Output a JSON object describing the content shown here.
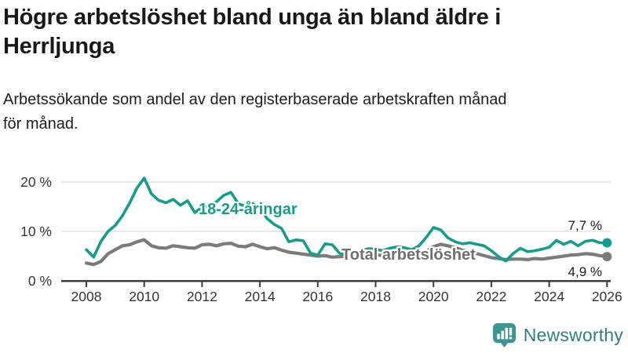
{
  "header": {
    "title": "Högre arbetslöshet bland unga än bland äldre i\nHerrljunga",
    "subtitle": "Arbetssökande som andel av den registerbaserade arbetskraften månad\nför månad."
  },
  "chart_data": {
    "type": "line",
    "title": "Högre arbetslöshet bland unga än bland äldre i Herrljunga",
    "xlabel": "",
    "ylabel": "Arbetssökande som andel av den registerbaserade arbetskraften (%)",
    "x_start": 2008,
    "x_step": 0.25,
    "x_ticks": [
      2008,
      2010,
      2012,
      2014,
      2016,
      2018,
      2020,
      2022,
      2024,
      2026
    ],
    "y_ticks": [
      0,
      10,
      20
    ],
    "y_tick_suffix": " %",
    "ylim": [
      0,
      22
    ],
    "xlim": [
      2007.2,
      2026.2
    ],
    "grid": "horizontal",
    "legend_position": "inline-annotations",
    "series": [
      {
        "id": "young",
        "name": "18-24-åringar",
        "color": "#169c8e",
        "stroke_width": 3.6,
        "end_label": "7,7 %",
        "end_value": 7.7,
        "values": [
          6.3,
          4.8,
          7.9,
          10.0,
          11.2,
          13.2,
          15.8,
          18.8,
          20.8,
          17.6,
          16.3,
          15.8,
          16.5,
          15.3,
          16.2,
          13.8,
          14.9,
          15.1,
          16.0,
          17.3,
          17.9,
          15.6,
          15.1,
          15.6,
          14.7,
          12.6,
          11.4,
          10.6,
          7.9,
          8.3,
          8.1,
          5.6,
          5.2,
          7.5,
          7.3,
          5.6,
          5.1,
          5.6,
          6.1,
          6.5,
          6.4,
          6.1,
          6.6,
          6.9,
          6.7,
          6.3,
          7.1,
          8.8,
          10.8,
          10.3,
          8.7,
          7.9,
          7.5,
          7.7,
          7.4,
          7.1,
          6.1,
          4.9,
          4.0,
          5.5,
          6.6,
          5.9,
          6.1,
          6.4,
          6.8,
          8.2,
          7.4,
          8.0,
          7.1,
          8.0,
          8.2,
          7.7,
          7.7
        ]
      },
      {
        "id": "total",
        "name": "Total arbetslöshet",
        "color": "#7b7b7b",
        "stroke_width": 4.2,
        "end_label": "4,9 %",
        "end_value": 4.9,
        "values": [
          3.6,
          3.3,
          3.9,
          5.5,
          6.3,
          7.1,
          7.3,
          7.9,
          8.3,
          7.1,
          6.7,
          6.6,
          7.1,
          6.9,
          6.7,
          6.6,
          7.3,
          7.4,
          7.1,
          7.5,
          7.6,
          7.0,
          6.9,
          7.4,
          6.9,
          6.5,
          6.7,
          6.2,
          5.8,
          5.6,
          5.4,
          5.2,
          5.0,
          5.1,
          4.8,
          4.9,
          5.0,
          5.2,
          5.4,
          5.5,
          5.3,
          5.1,
          5.3,
          5.5,
          5.4,
          5.2,
          5.5,
          5.9,
          6.9,
          7.4,
          7.1,
          6.7,
          6.2,
          5.9,
          5.5,
          5.1,
          4.7,
          4.5,
          4.3,
          4.4,
          4.4,
          4.3,
          4.5,
          4.4,
          4.6,
          4.8,
          5.0,
          5.2,
          5.3,
          5.5,
          5.4,
          5.1,
          4.9
        ]
      }
    ],
    "colors": {
      "grid": "#e1e1e1",
      "axis": "#3c3c3c",
      "young_series": "#169c8e",
      "total_series": "#7b7b7b",
      "total_label": "#6f6f6f"
    }
  },
  "footer": {
    "brand": "Newsworthy",
    "logo_color": "#3c968f",
    "logo_text_color": "#30807c"
  }
}
